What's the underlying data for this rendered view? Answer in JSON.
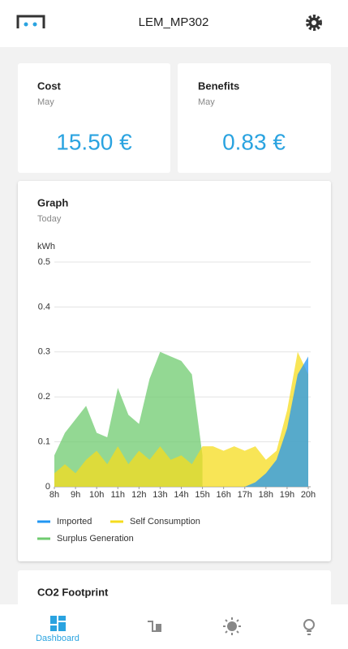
{
  "header": {
    "title": "LEM_MP302"
  },
  "cards": [
    {
      "title": "Cost",
      "subtitle": "May",
      "value": "15.50 €"
    },
    {
      "title": "Benefits",
      "subtitle": "May",
      "value": "0.83 €"
    }
  ],
  "graph": {
    "title": "Graph",
    "subtitle": "Today",
    "chart_data": {
      "type": "area",
      "y_label": "kWh",
      "x": [
        8,
        8.5,
        9,
        9.5,
        10,
        10.5,
        11,
        11.5,
        12,
        12.5,
        13,
        13.5,
        14,
        14.5,
        15,
        15.5,
        16,
        16.5,
        17,
        17.5,
        18,
        18.5,
        19,
        19.5,
        20
      ],
      "series": [
        {
          "name": "Surplus Generation",
          "color": "#6fcb6f",
          "values": [
            0.07,
            0.12,
            0.15,
            0.18,
            0.12,
            0.11,
            0.22,
            0.16,
            0.14,
            0.24,
            0.3,
            0.29,
            0.28,
            0.25,
            0.07,
            null,
            null,
            null,
            null,
            null,
            null,
            null,
            null,
            null,
            null
          ]
        },
        {
          "name": "Self Consumption",
          "color": "#f5dc1e",
          "values": [
            0.03,
            0.05,
            0.03,
            0.06,
            0.08,
            0.05,
            0.09,
            0.05,
            0.08,
            0.06,
            0.09,
            0.06,
            0.07,
            0.05,
            0.09,
            0.09,
            0.08,
            0.09,
            0.08,
            0.09,
            0.06,
            0.08,
            0.17,
            0.3,
            0.25
          ]
        },
        {
          "name": "Imported",
          "color": "#2196f3",
          "values": [
            0,
            0,
            0,
            0,
            0,
            0,
            0,
            0,
            0,
            0,
            0,
            0,
            0,
            0,
            0,
            0,
            0,
            0,
            0,
            0.01,
            0.03,
            0.06,
            0.13,
            0.25,
            0.29
          ]
        }
      ],
      "legend_order": [
        "Imported",
        "Self Consumption",
        "Surplus Generation"
      ],
      "xlim": [
        8,
        20
      ],
      "xticks": [
        {
          "value": 8,
          "label": "8h"
        },
        {
          "value": 9,
          "label": "9h"
        },
        {
          "value": 10,
          "label": "10h"
        },
        {
          "value": 11,
          "label": "11h"
        },
        {
          "value": 12,
          "label": "12h"
        },
        {
          "value": 13,
          "label": "13h"
        },
        {
          "value": 14,
          "label": "14h"
        },
        {
          "value": 15,
          "label": "15h"
        },
        {
          "value": 16,
          "label": "16h"
        },
        {
          "value": 17,
          "label": "17h"
        },
        {
          "value": 18,
          "label": "18h"
        },
        {
          "value": 19,
          "label": "19h"
        },
        {
          "value": 20,
          "label": "20h"
        }
      ],
      "ylim": [
        0,
        0.5
      ],
      "yticks": [
        0,
        0.1,
        0.2,
        0.3,
        0.4,
        0.5
      ],
      "grid": true
    }
  },
  "co2": {
    "title": "CO2 Footprint"
  },
  "nav": {
    "active": "Dashboard"
  }
}
